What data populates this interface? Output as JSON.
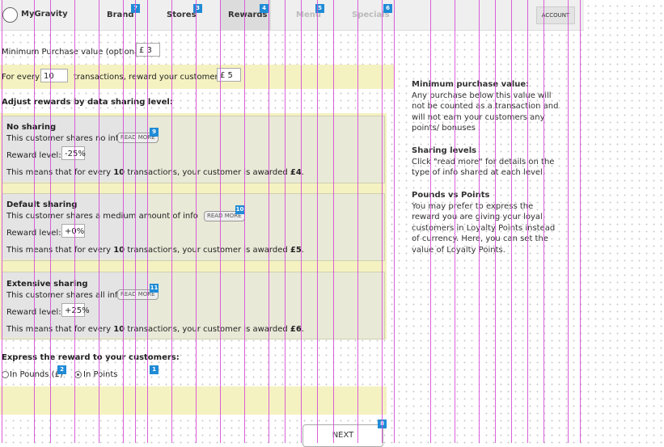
{
  "nav": {
    "logo": "MyGravity",
    "items": [
      {
        "label": "Brand",
        "badge": "7"
      },
      {
        "label": "Stores",
        "badge": "3"
      },
      {
        "label": "Rewards",
        "badge": "4"
      },
      {
        "label": "Menu",
        "badge": "5"
      },
      {
        "label": "Specials",
        "badge": "6"
      }
    ],
    "account": "ACCOUNT"
  },
  "form": {
    "min_purchase_label": "Minimum Purchase value (optional)",
    "min_purchase_value": "£ 3",
    "for_every": "For every",
    "transactions_value": "10",
    "transactions_reward": "transactions, reward your customers.",
    "reward_value": "£ 5",
    "adjust_label": "Adjust rewards by data sharing level:"
  },
  "levels": [
    {
      "title": "No sharing",
      "desc": "This customer shares no info",
      "read_more": "READ MORE",
      "badge": "9",
      "reward_label": "Reward level:",
      "reward_value": "-25%",
      "means_prefix": "This means that for every ",
      "means_count": "10",
      "means_mid": " transactions, your customer is awarded ",
      "means_amount": "£4",
      "means_end": "."
    },
    {
      "title": "Default sharing",
      "desc": "This customer shares a medium amount of info",
      "read_more": "READ MORE",
      "badge": "10",
      "reward_label": "Reward level:",
      "reward_value": "+0%",
      "means_prefix": "This means that for every ",
      "means_count": "10",
      "means_mid": " transactions, your customer is awarded ",
      "means_amount": "£5",
      "means_end": "."
    },
    {
      "title": "Extensive sharing",
      "desc": "This customer shares all info",
      "read_more": "READ MORE",
      "badge": "11",
      "reward_label": "Reward level:",
      "reward_value": "+25%",
      "means_prefix": "This means that for every ",
      "means_count": "10",
      "means_mid": " transactions, your customer is awarded ",
      "means_amount": "£6",
      "means_end": "."
    }
  ],
  "express": {
    "label": "Express the reward to your customers:",
    "option_pounds": "In Pounds (£)",
    "option_points": "In Points",
    "badge_points": "1",
    "badge_pounds": "2"
  },
  "next": {
    "label": "NEXT",
    "badge": "8"
  },
  "sidebar": {
    "min_title": "Minimum purchase value:",
    "min_text": "Any purchase below this value will not be counted as a transaction and will not earn your customers any points/ bonuses",
    "sharing_title": "Sharing levels",
    "sharing_text": "Click \"read more\" for details on the type of info shared at each level.",
    "points_title": "Pounds vs Points",
    "points_text": "You may prefer to express the reward you are giving your loyal customers in Loyalty Points instead of currency. Here, you can set the value of Loyalty Points."
  }
}
